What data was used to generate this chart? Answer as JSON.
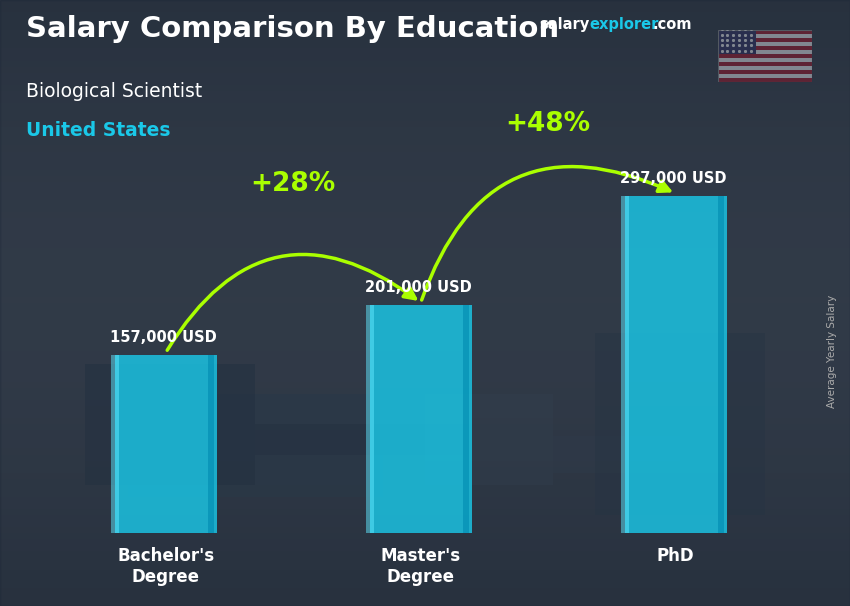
{
  "title_main": "Salary Comparison By Education",
  "subtitle1": "Biological Scientist",
  "subtitle2": "United States",
  "watermark_salary": "salary",
  "watermark_explorer": "explorer",
  "watermark_com": ".com",
  "ylabel_rotated": "Average Yearly Salary",
  "categories": [
    "Bachelor's\nDegree",
    "Master's\nDegree",
    "PhD"
  ],
  "values": [
    157000,
    201000,
    297000
  ],
  "value_labels": [
    "157,000 USD",
    "201,000 USD",
    "297,000 USD"
  ],
  "bar_color": "#1ac8e8",
  "bar_alpha": 0.82,
  "pct_labels": [
    "+28%",
    "+48%"
  ],
  "pct_color": "#aaff00",
  "title_color": "#ffffff",
  "subtitle1_color": "#ffffff",
  "subtitle2_color": "#1ac8e8",
  "value_label_color": "#ffffff",
  "tick_label_color": "#ffffff",
  "watermark_salary_color": "#ffffff",
  "watermark_explorer_color": "#1ac8e8",
  "watermark_com_color": "#ffffff",
  "bg_color": "#3a4555",
  "ylabel_color": "#aaaaaa",
  "bar_width": 0.4,
  "xlim": [
    -0.55,
    2.55
  ],
  "ylim": [
    0,
    400000
  ]
}
